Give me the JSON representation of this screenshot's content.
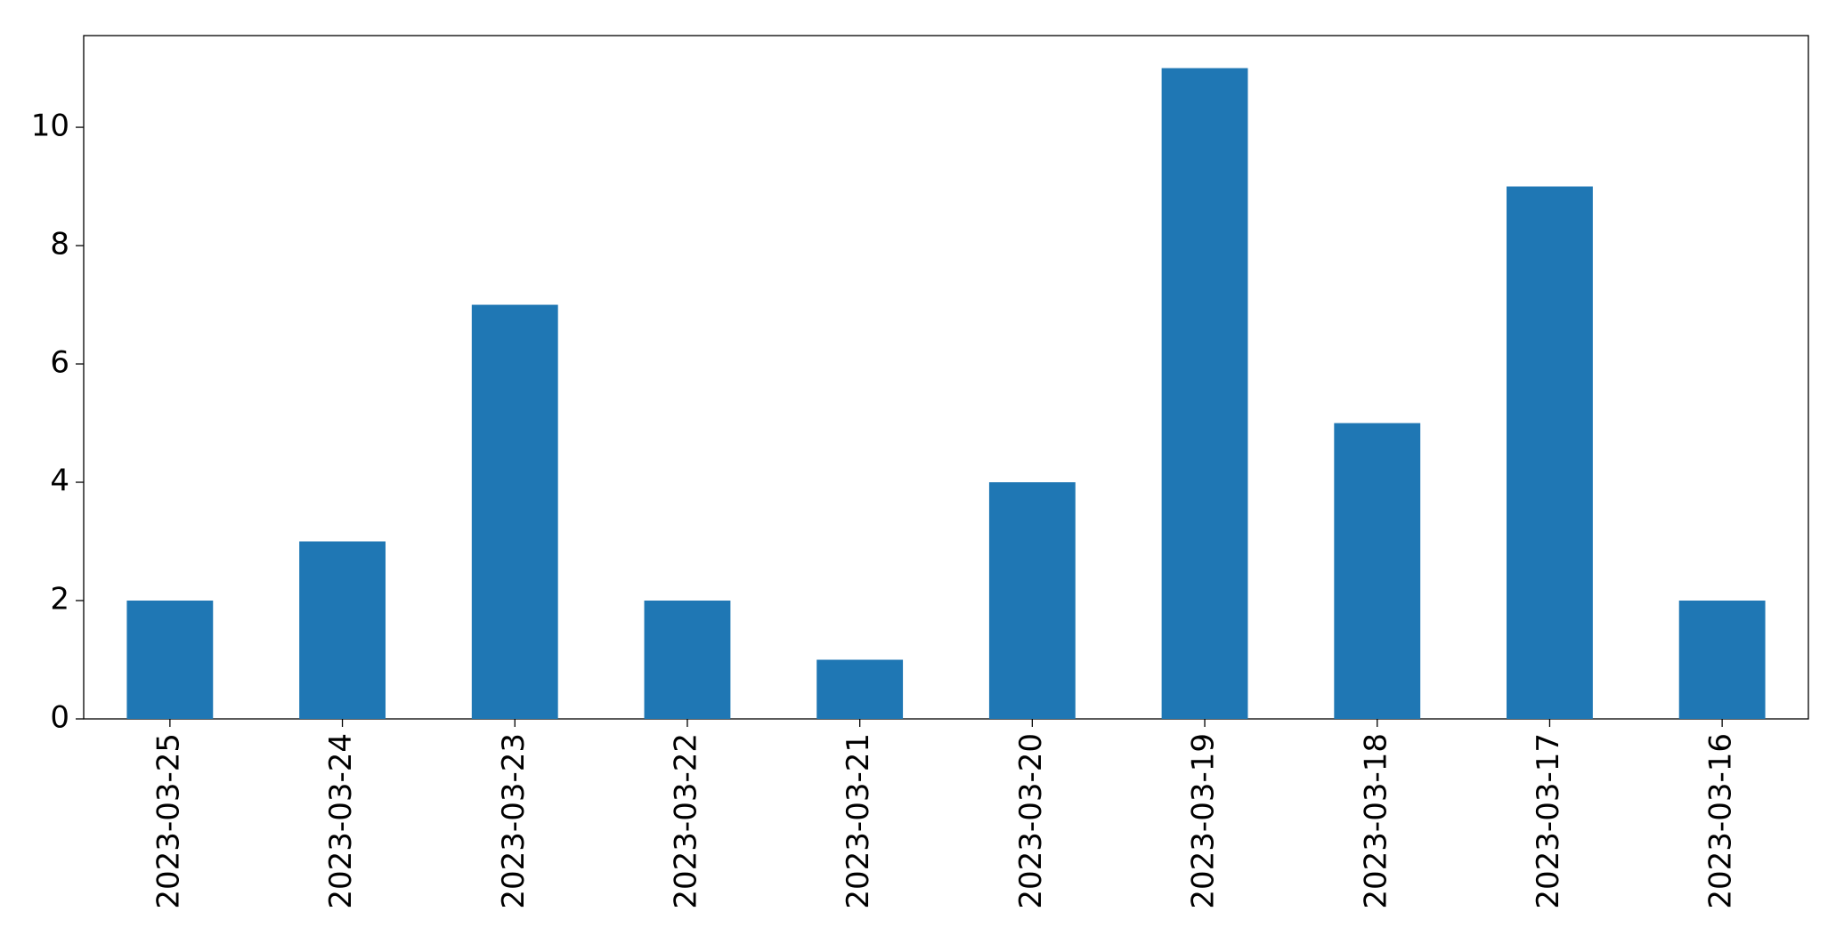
{
  "chart_data": {
    "type": "bar",
    "categories": [
      "2023-03-25",
      "2023-03-24",
      "2023-03-23",
      "2023-03-22",
      "2023-03-21",
      "2023-03-20",
      "2023-03-19",
      "2023-03-18",
      "2023-03-17",
      "2023-03-16"
    ],
    "values": [
      2,
      3,
      7,
      2,
      1,
      4,
      11,
      5,
      9,
      2
    ],
    "color": "#1f77b4",
    "ylim": [
      0,
      11.55
    ],
    "yticks": [
      0,
      2,
      4,
      6,
      8,
      10
    ],
    "grid": false
  }
}
